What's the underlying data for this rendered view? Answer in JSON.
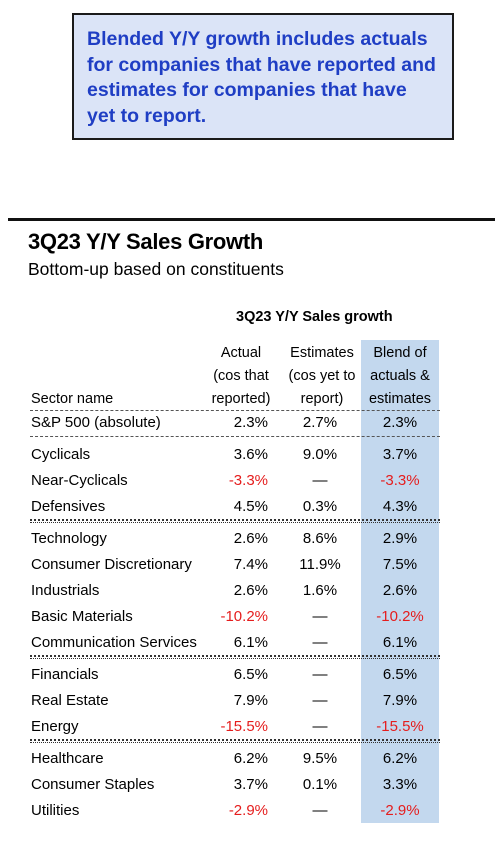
{
  "note": {
    "lines": [
      "Blended Y/Y growth includes actuals",
      "for companies that have reported and",
      "estimates for companies that have",
      "yet to report."
    ]
  },
  "title": "3Q23 Y/Y Sales Growth",
  "subtitle": "Bottom-up based on constituents",
  "table": {
    "group_header": "3Q23 Y/Y Sales growth",
    "col_headers": {
      "sector": "Sector name",
      "actual": [
        "Actual",
        "(cos that",
        "reported)"
      ],
      "estimates": [
        "Estimates",
        "(cos yet to",
        "report)"
      ],
      "blend": [
        "Blend of",
        "actuals &",
        "estimates"
      ]
    },
    "rows": [
      {
        "name": "S&P 500 (absolute)",
        "actual": "2.3%",
        "estimates": "2.7%",
        "blend": "2.3%"
      },
      {
        "name": "Cyclicals",
        "actual": "3.6%",
        "estimates": "9.0%",
        "blend": "3.7%"
      },
      {
        "name": "Near-Cyclicals",
        "actual": "-3.3%",
        "estimates": "—",
        "blend": "-3.3%"
      },
      {
        "name": "Defensives",
        "actual": "4.5%",
        "estimates": "0.3%",
        "blend": "4.3%"
      },
      {
        "name": "Technology",
        "actual": "2.6%",
        "estimates": "8.6%",
        "blend": "2.9%"
      },
      {
        "name": "Consumer Discretionary",
        "actual": "7.4%",
        "estimates": "11.9%",
        "blend": "7.5%"
      },
      {
        "name": "Industrials",
        "actual": "2.6%",
        "estimates": "1.6%",
        "blend": "2.6%"
      },
      {
        "name": "Basic Materials",
        "actual": "-10.2%",
        "estimates": "—",
        "blend": "-10.2%"
      },
      {
        "name": "Communication Services",
        "actual": "6.1%",
        "estimates": "—",
        "blend": "6.1%"
      },
      {
        "name": "Financials",
        "actual": "6.5%",
        "estimates": "—",
        "blend": "6.5%"
      },
      {
        "name": "Real Estate",
        "actual": "7.9%",
        "estimates": "—",
        "blend": "7.9%"
      },
      {
        "name": "Energy",
        "actual": "-15.5%",
        "estimates": "—",
        "blend": "-15.5%"
      },
      {
        "name": "Healthcare",
        "actual": "6.2%",
        "estimates": "9.5%",
        "blend": "6.2%"
      },
      {
        "name": "Consumer Staples",
        "actual": "3.7%",
        "estimates": "0.1%",
        "blend": "3.3%"
      },
      {
        "name": "Utilities",
        "actual": "-2.9%",
        "estimates": "—",
        "blend": "-2.9%"
      }
    ],
    "negative_color": "#e51d1d",
    "blend_column_color": "#c3d8ee"
  }
}
